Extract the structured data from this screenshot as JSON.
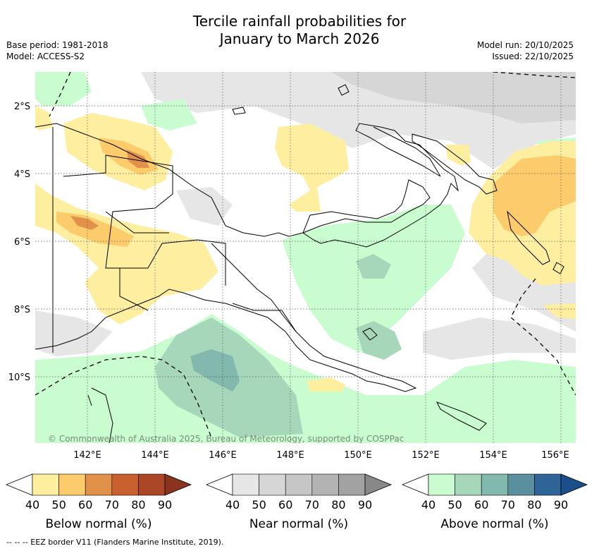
{
  "title": {
    "line1": "Tercile rainfall probabilities for",
    "line2": "January to March 2026"
  },
  "meta": {
    "base_period": "Base period: 1981-2018",
    "model": "Model: ACCESS-S2",
    "model_run": "Model run: 20/10/2025",
    "issued": "Issued: 22/10/2025"
  },
  "map": {
    "lat_labels": [
      "2°S",
      "4°S",
      "6°S",
      "8°S",
      "10°S"
    ],
    "lon_labels": [
      "142°E",
      "144°E",
      "146°E",
      "148°E",
      "150°E",
      "152°E",
      "154°E",
      "156°E"
    ],
    "credit": "© Commonwealth of Australia 2025, Bureau of Meteorology, supported by COSPPac",
    "colors": {
      "land_border": "#000000",
      "gridline": "#555555",
      "credit_text": "#7a8a7a"
    }
  },
  "colorbars": [
    {
      "label": "Below normal (%)",
      "ticks": [
        "40",
        "50",
        "60",
        "70",
        "80",
        "90"
      ],
      "colors": [
        "#ffffff",
        "#fdeea0",
        "#fccb6b",
        "#e1914a",
        "#c8602f",
        "#ab4727",
        "#8a3420"
      ]
    },
    {
      "label": "Near normal (%)",
      "ticks": [
        "40",
        "50",
        "60",
        "70",
        "80",
        "90"
      ],
      "colors": [
        "#ffffff",
        "#e6e6e6",
        "#d6d6d6",
        "#c6c6c6",
        "#b3b3b3",
        "#a2a2a2",
        "#888888"
      ]
    },
    {
      "label": "Above normal (%)",
      "ticks": [
        "40",
        "50",
        "60",
        "70",
        "80",
        "90"
      ],
      "colors": [
        "#ffffff",
        "#c9fdd0",
        "#a6d7bb",
        "#82b8ad",
        "#5b8f9e",
        "#2f6496",
        "#1b4f8c"
      ]
    }
  ],
  "footer": "--  --  -- EEZ border V11 (Flanders Marine Institute, 2019)."
}
